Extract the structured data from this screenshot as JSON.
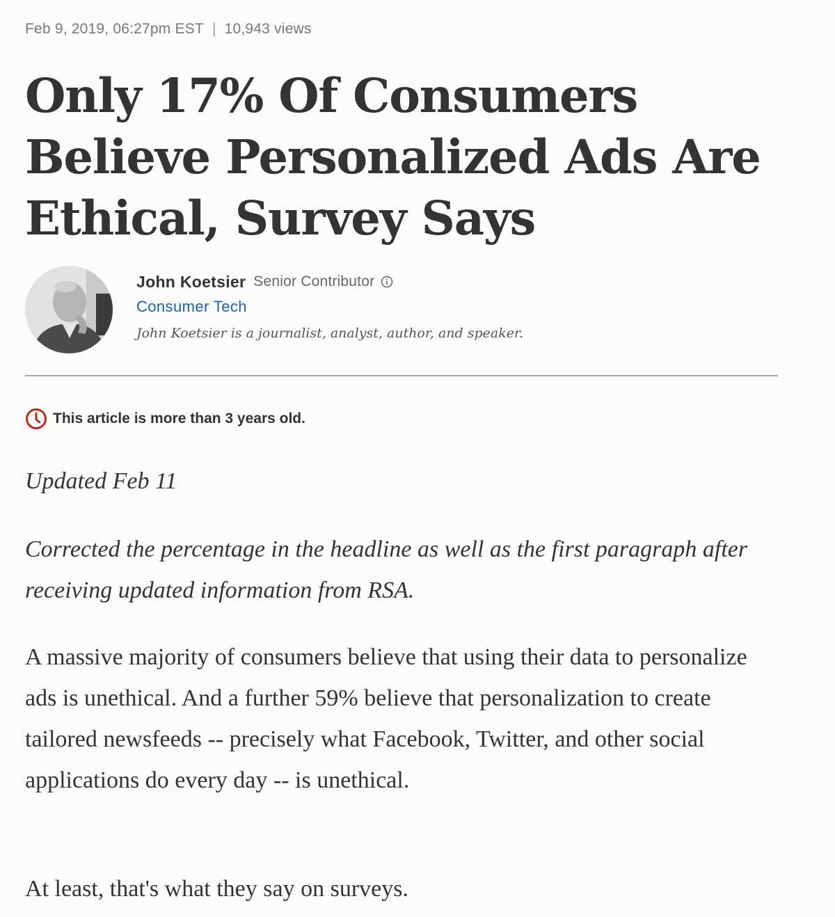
{
  "meta": {
    "date": "Feb 9, 2019, 06:27pm EST",
    "separator": "|",
    "views": "10,943 views"
  },
  "headline": "Only 17% Of Consumers Believe Personalized Ads Are Ethical, Survey Says",
  "author": {
    "name": "John Koetsier",
    "role": "Senior Contributor",
    "info_icon": "info-circle-icon",
    "channel": "Consumer Tech",
    "bio": "John Koetsier is a journalist, analyst, author, and speaker."
  },
  "notice": {
    "icon": "clock-icon",
    "text": "This article is more than 3 years old."
  },
  "article": {
    "updated": "Updated Feb 11",
    "correction": "Corrected the percentage in the headline as well as the first paragraph after receiving updated information from RSA.",
    "paragraph1": "A massive majority of consumers believe that using their data to personalize ads is unethical. And a further 59% believe that personalization to create tailored newsfeeds -- precisely what Facebook, Twitter, and other social applications do every day -- is unethical.",
    "paragraph2": "At least, that's what they say on surveys."
  },
  "colors": {
    "text": "#333333",
    "link": "#1a63a6",
    "notice_icon": "#c0281c",
    "divider": "#a8a8a8"
  }
}
